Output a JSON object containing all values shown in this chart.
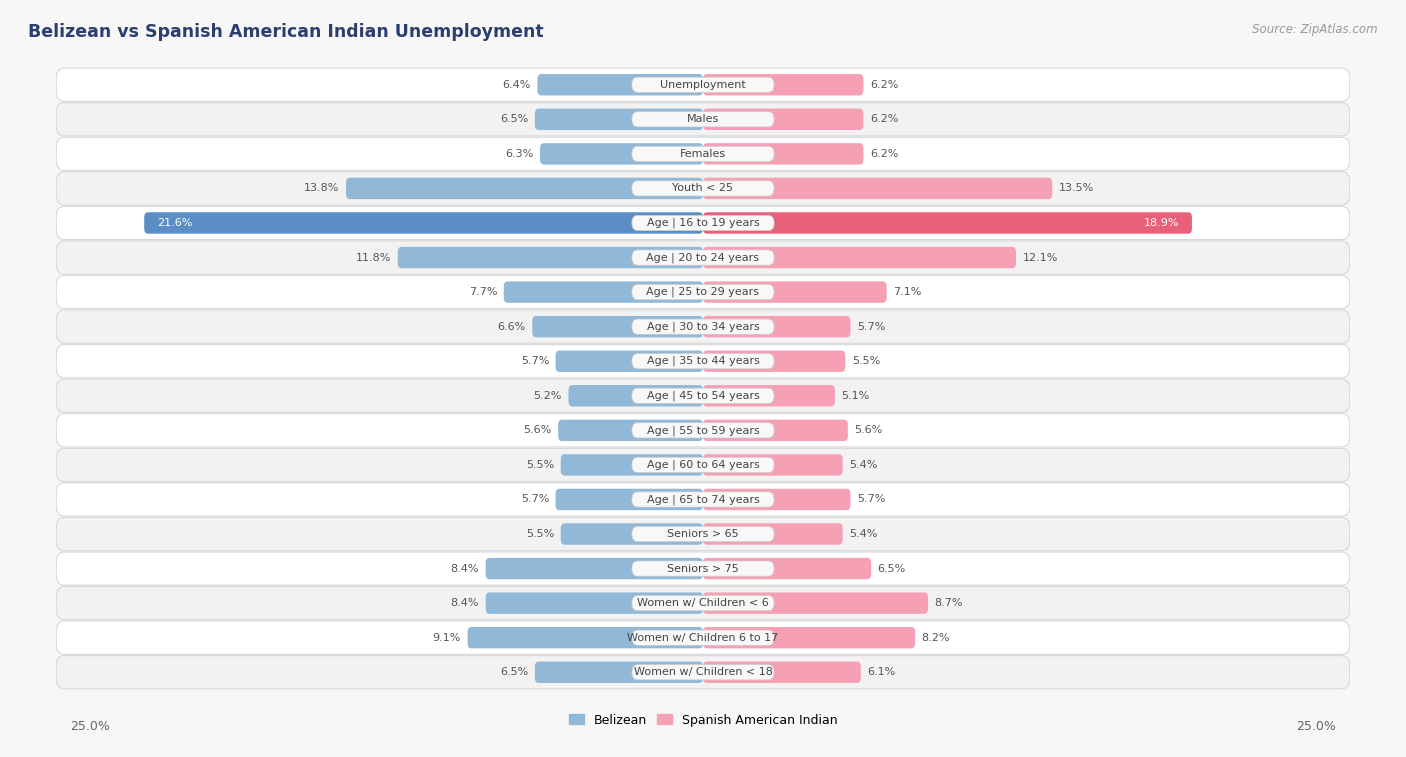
{
  "title": "Belizean vs Spanish American Indian Unemployment",
  "source": "Source: ZipAtlas.com",
  "categories": [
    "Unemployment",
    "Males",
    "Females",
    "Youth < 25",
    "Age | 16 to 19 years",
    "Age | 20 to 24 years",
    "Age | 25 to 29 years",
    "Age | 30 to 34 years",
    "Age | 35 to 44 years",
    "Age | 45 to 54 years",
    "Age | 55 to 59 years",
    "Age | 60 to 64 years",
    "Age | 65 to 74 years",
    "Seniors > 65",
    "Seniors > 75",
    "Women w/ Children < 6",
    "Women w/ Children 6 to 17",
    "Women w/ Children < 18"
  ],
  "belizean": [
    6.4,
    6.5,
    6.3,
    13.8,
    21.6,
    11.8,
    7.7,
    6.6,
    5.7,
    5.2,
    5.6,
    5.5,
    5.7,
    5.5,
    8.4,
    8.4,
    9.1,
    6.5
  ],
  "spanish": [
    6.2,
    6.2,
    6.2,
    13.5,
    18.9,
    12.1,
    7.1,
    5.7,
    5.5,
    5.1,
    5.6,
    5.4,
    5.7,
    5.4,
    6.5,
    8.7,
    8.2,
    6.1
  ],
  "belizean_color": "#92b8d8",
  "spanish_color": "#f5a0b5",
  "belizean_color_highlight": "#5b8ec4",
  "spanish_color_highlight": "#e8607a",
  "row_color_odd": "#f2f2f2",
  "row_color_even": "#ffffff",
  "row_border_color": "#d8d8d8",
  "label_bg_color": "#f8f8f8",
  "label_border_color": "#cccccc",
  "background_color": "#f7f7f7",
  "max_val": 25.0,
  "legend_belizean": "Belizean",
  "legend_spanish": "Spanish American Indian",
  "title_color": "#2c3e70",
  "source_color": "#999999",
  "value_color": "#555555",
  "value_color_white": "#ffffff"
}
